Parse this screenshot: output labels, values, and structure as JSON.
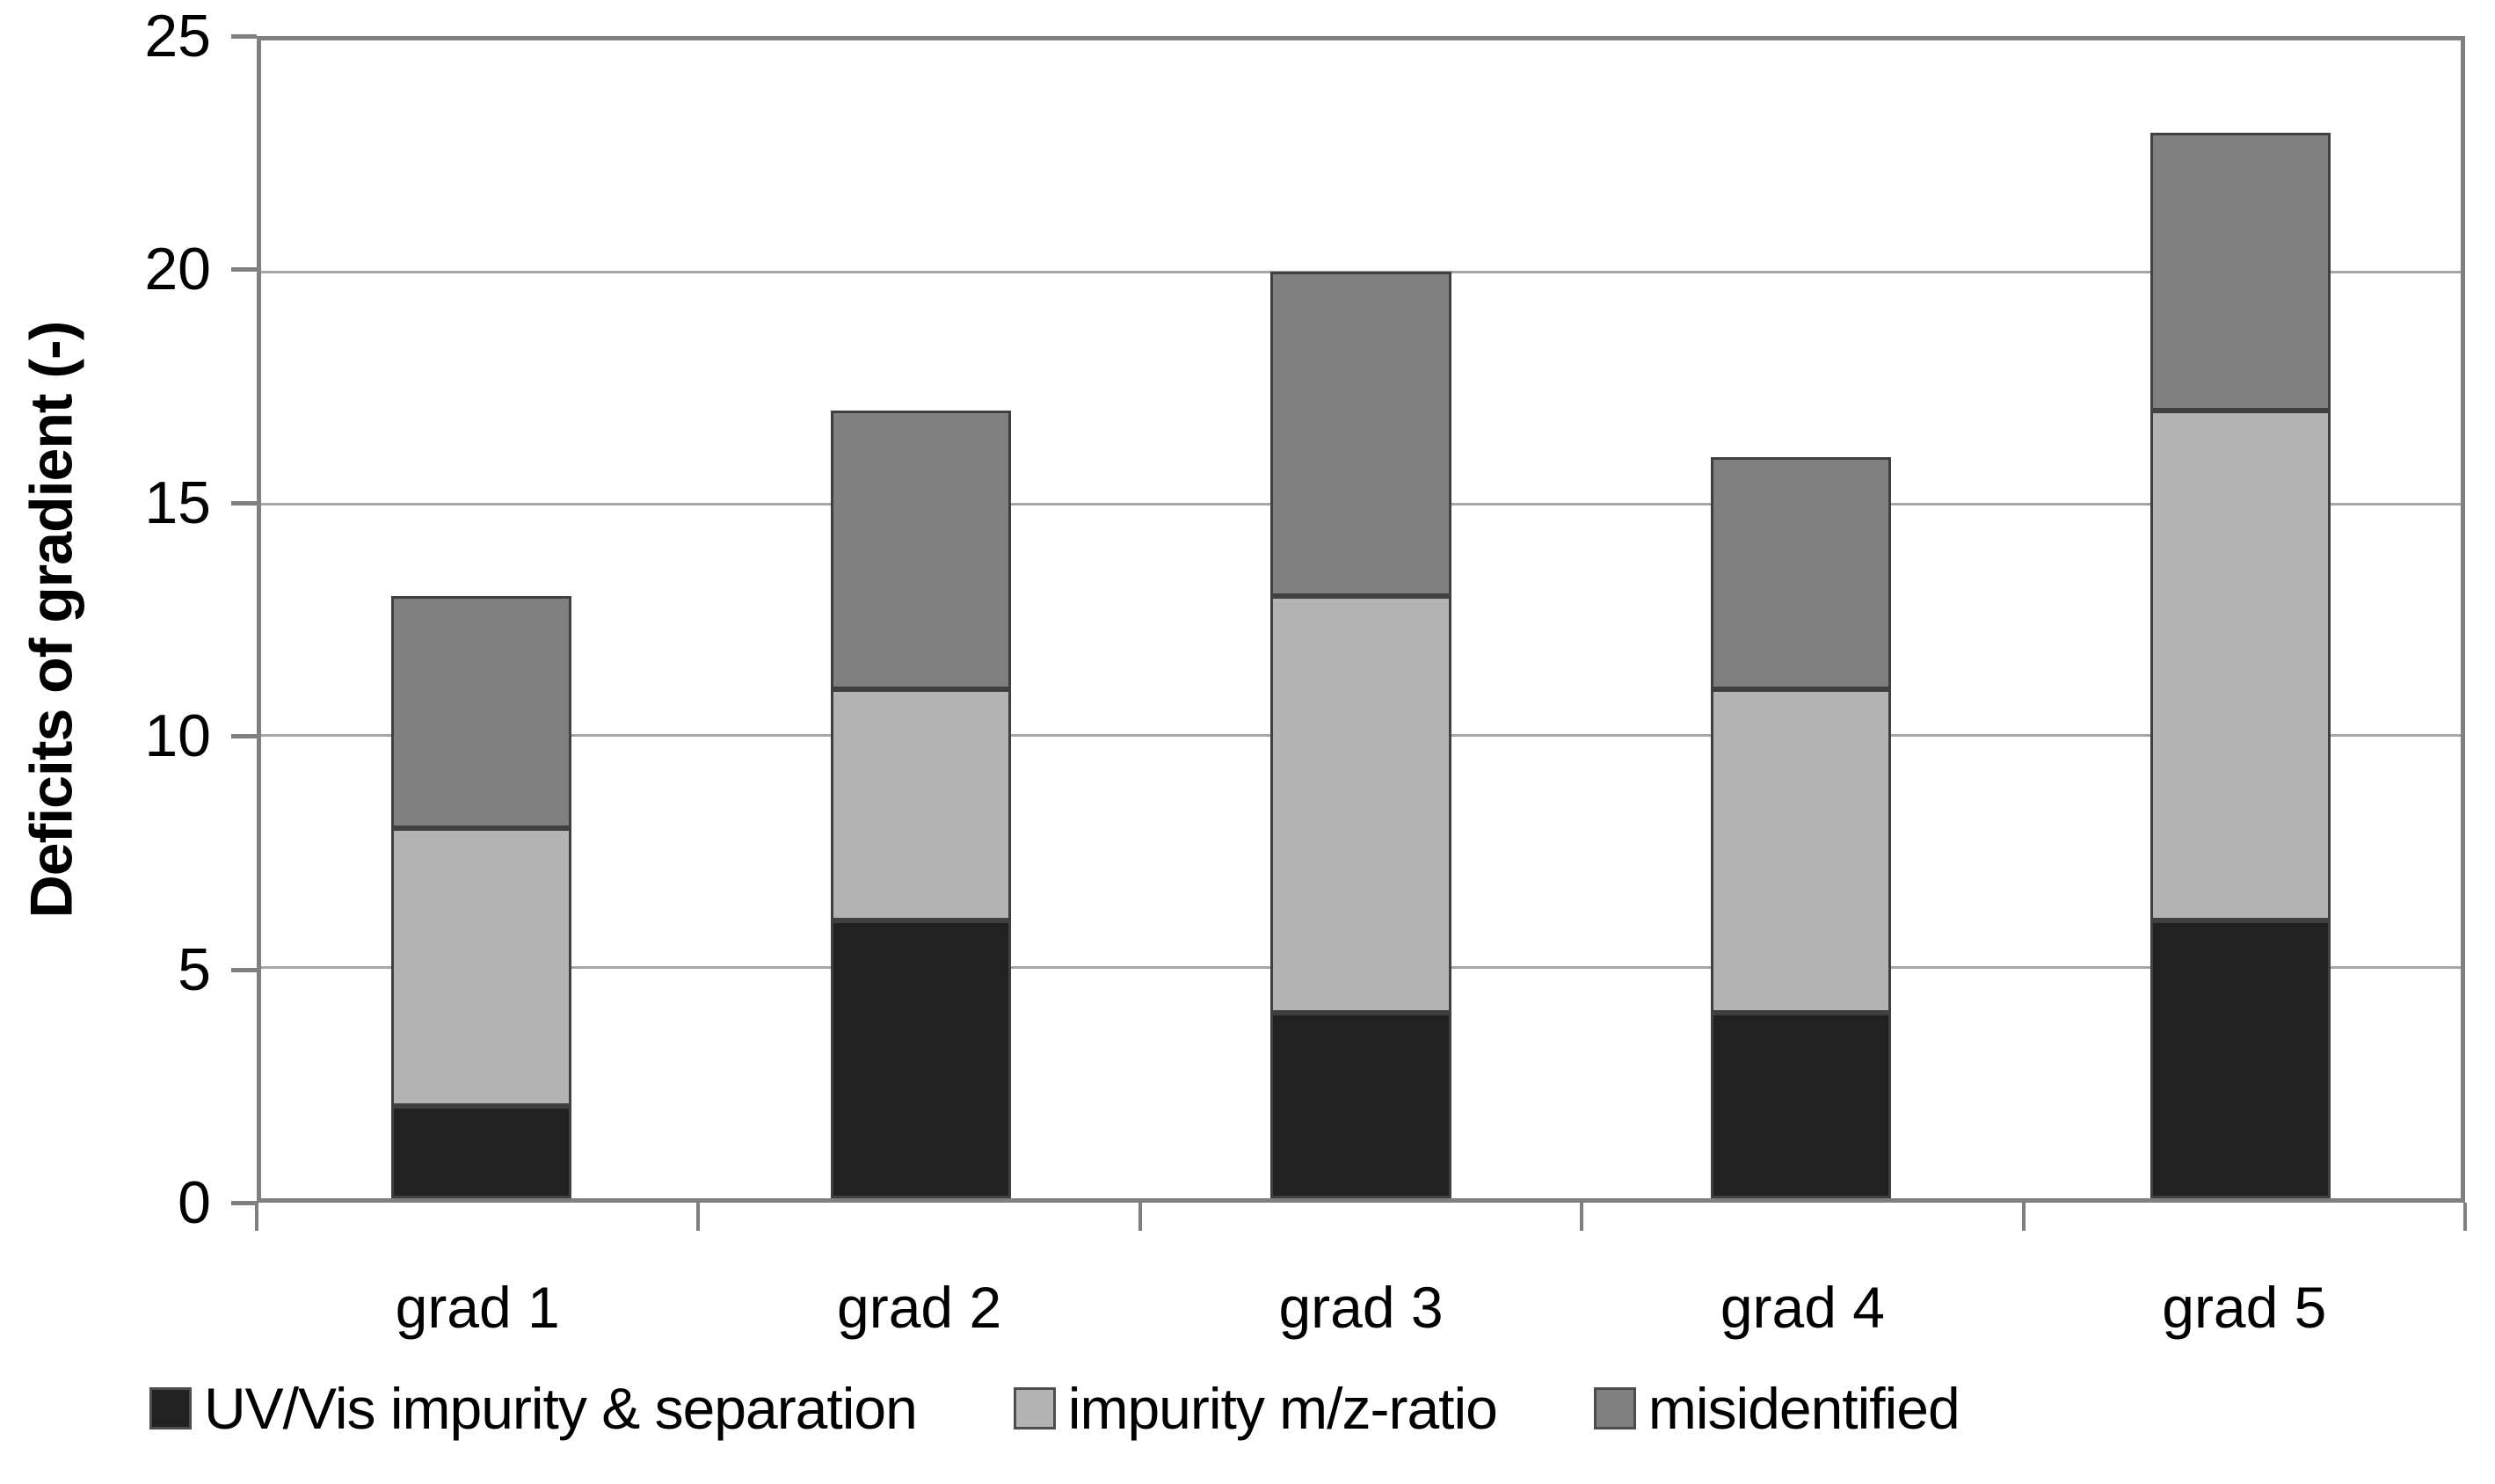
{
  "chart_data": {
    "type": "bar",
    "stacked": true,
    "title": "",
    "xlabel": "",
    "ylabel": "Deficits of gradient (-)",
    "categories": [
      "grad 1",
      "grad 2",
      "grad 3",
      "grad 4",
      "grad 5"
    ],
    "series": [
      {
        "name": "UV/Vis impurity & separation",
        "color": "#212121",
        "values": [
          2,
          6,
          4,
          4,
          6
        ]
      },
      {
        "name": "impurity m/z-ratio",
        "color": "#b3b3b3",
        "values": [
          6,
          5,
          9,
          7,
          11
        ]
      },
      {
        "name": "misidentified",
        "color": "#808080",
        "values": [
          5,
          6,
          7,
          5,
          6
        ]
      }
    ],
    "ylim": [
      0,
      25
    ],
    "y_ticks": [
      0,
      5,
      10,
      15,
      20,
      25
    ],
    "grid": true,
    "legend_position": "bottom",
    "colors": {
      "bar_border": "#404040",
      "gridline": "#a6a6a6",
      "axis": "#808080",
      "text": "#000000",
      "background": "#ffffff"
    }
  }
}
